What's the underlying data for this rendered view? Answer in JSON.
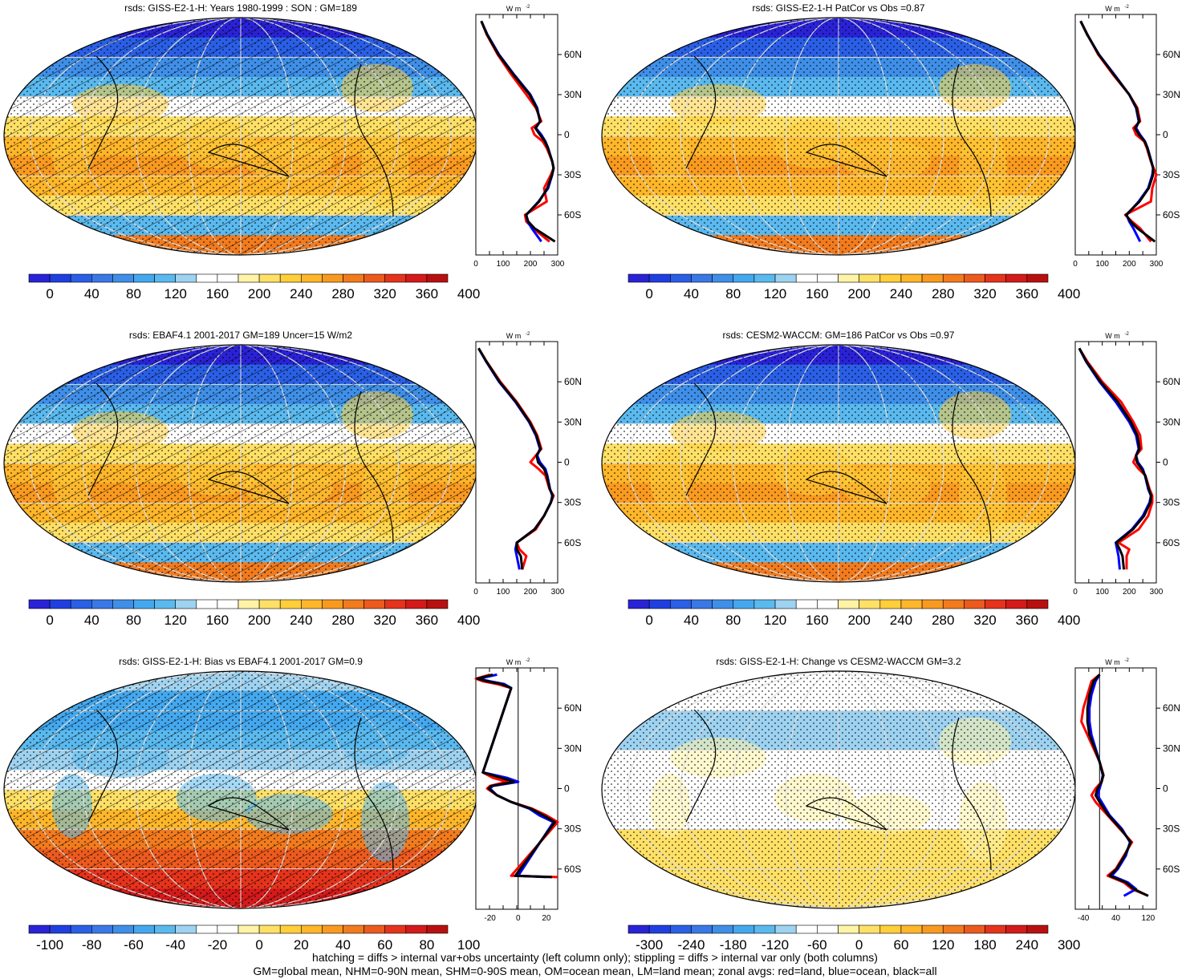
{
  "footer": {
    "line1": "hatching = diffs > internal var+obs uncertainty (left column only); stippling = diffs > internal var only (both columns)",
    "line2": "GM=global mean, NHM=0-90N mean, SHM=0-90S mean, OM=ocean mean, LM=land mean; zonal avgs: red=land, blue=ocean, black=all"
  },
  "colors": {
    "scale": [
      "#2a22d6",
      "#1f3fe0",
      "#2a5fe6",
      "#3a78e6",
      "#3f8fe8",
      "#44a8ee",
      "#5ab9ee",
      "#9dd2f0",
      "#ffffff",
      "#ffffff",
      "#fff3a6",
      "#ffe066",
      "#ffce3a",
      "#ffb62a",
      "#f99a20",
      "#f27b1e",
      "#ec5a1e",
      "#e5331c",
      "#d41a1a",
      "#b81010"
    ],
    "land_line": "#ff0000",
    "ocean_line": "#0000ff",
    "all_line": "#000000"
  },
  "chart_data": [
    {
      "type": "heatmap",
      "title": "rsds: GISS-E2-1-H: Years 1980-1999 : SON : GM=189",
      "kind": "climatology",
      "hatched": true,
      "colorbar_ticks": [
        "0",
        "40",
        "80",
        "120",
        "160",
        "200",
        "240",
        "280",
        "320",
        "360",
        "400"
      ],
      "zonal_profile": {
        "unit_label": "W m",
        "unit_exponent": "-2",
        "x_ticks": [
          "0",
          "100",
          "200",
          "300"
        ],
        "xlim": [
          0,
          300
        ],
        "lat_ticks": [
          "60N",
          "30N",
          "0",
          "30S",
          "60S"
        ],
        "lat": [
          85,
          75,
          60,
          45,
          30,
          20,
          10,
          5,
          0,
          -5,
          -10,
          -20,
          -25,
          -30,
          -40,
          -50,
          -60,
          -65,
          -70,
          -80
        ],
        "series": [
          {
            "name": "land",
            "values": [
              20,
              40,
              80,
              130,
              185,
              220,
              240,
              205,
              215,
              245,
              260,
              280,
              285,
              275,
              250,
              260,
              180,
              185,
              210,
              270
            ]
          },
          {
            "name": "ocean",
            "values": [
              20,
              42,
              85,
              140,
              200,
              225,
              235,
              220,
              240,
              255,
              265,
              280,
              285,
              280,
              265,
              230,
              185,
              190,
              205,
              240
            ]
          },
          {
            "name": "all",
            "values": [
              20,
              41,
              83,
              138,
              197,
              223,
              236,
              218,
              235,
              253,
              264,
              280,
              285,
              279,
              262,
              232,
              184,
              192,
              215,
              290
            ]
          }
        ]
      }
    },
    {
      "type": "heatmap",
      "title": "rsds: GISS-E2-1-H PatCor vs Obs =0.87",
      "kind": "climatology",
      "hatched": false,
      "colorbar_ticks": [
        "0",
        "40",
        "80",
        "120",
        "160",
        "200",
        "240",
        "280",
        "320",
        "360",
        "400"
      ],
      "zonal_profile": {
        "unit_label": "W m",
        "unit_exponent": "-2",
        "x_ticks": [
          "0",
          "100",
          "200",
          "300"
        ],
        "xlim": [
          0,
          300
        ],
        "lat_ticks": [
          "60N",
          "30N",
          "0",
          "30S",
          "60S"
        ],
        "lat": [
          85,
          75,
          60,
          45,
          30,
          20,
          10,
          5,
          0,
          -5,
          -10,
          -20,
          -25,
          -30,
          -40,
          -50,
          -60,
          -65,
          -70,
          -80
        ],
        "series": [
          {
            "name": "land",
            "values": [
              20,
              45,
              85,
              140,
              200,
              230,
              240,
              215,
              225,
              255,
              265,
              280,
              290,
              300,
              285,
              280,
              185,
              210,
              240,
              280
            ]
          },
          {
            "name": "ocean",
            "values": [
              20,
              44,
              88,
              145,
              200,
              225,
              235,
              225,
              240,
              258,
              268,
              282,
              288,
              285,
              270,
              235,
              190,
              200,
              215,
              240
            ]
          },
          {
            "name": "all",
            "values": [
              20,
              44,
              87,
              143,
              200,
              227,
              237,
              222,
              236,
              257,
              267,
              281,
              288,
              288,
              272,
              238,
              188,
              205,
              230,
              295
            ]
          }
        ]
      }
    },
    {
      "type": "heatmap",
      "title": "rsds: EBAF4.1 2001-2017 GM=189 Uncer=15 W/m2",
      "kind": "climatology",
      "hatched": true,
      "colorbar_ticks": [
        "0",
        "40",
        "80",
        "120",
        "160",
        "200",
        "240",
        "280",
        "320",
        "360",
        "400"
      ],
      "zonal_profile": {
        "unit_label": "W m",
        "unit_exponent": "-2",
        "x_ticks": [
          "0",
          "100",
          "200",
          "300"
        ],
        "xlim": [
          0,
          300
        ],
        "lat_ticks": [
          "60N",
          "30N",
          "0",
          "30S",
          "60S"
        ],
        "lat": [
          85,
          75,
          60,
          45,
          30,
          20,
          10,
          5,
          0,
          -5,
          -10,
          -20,
          -25,
          -30,
          -40,
          -50,
          -60,
          -65,
          -70,
          -80
        ],
        "series": [
          {
            "name": "land",
            "values": [
              10,
              40,
              90,
              150,
              200,
              225,
              240,
              220,
              200,
              230,
              255,
              270,
              285,
              275,
              250,
              220,
              150,
              160,
              185,
              170
            ]
          },
          {
            "name": "ocean",
            "values": [
              10,
              38,
              85,
              145,
              195,
              220,
              235,
              225,
              235,
              255,
              262,
              272,
              280,
              275,
              250,
              215,
              150,
              145,
              150,
              160
            ]
          },
          {
            "name": "all",
            "values": [
              10,
              39,
              87,
              147,
              197,
              222,
              237,
              223,
              228,
              250,
              260,
              271,
              282,
              275,
              250,
              216,
              150,
              150,
              165,
              170
            ]
          }
        ]
      }
    },
    {
      "type": "heatmap",
      "title": "rsds: CESM2-WACCM: GM=186 PatCor vs Obs =0.97",
      "kind": "climatology",
      "hatched": false,
      "colorbar_ticks": [
        "0",
        "40",
        "80",
        "120",
        "160",
        "200",
        "240",
        "280",
        "320",
        "360",
        "400"
      ],
      "zonal_profile": {
        "unit_label": "W m",
        "unit_exponent": "-2",
        "x_ticks": [
          "0",
          "100",
          "200",
          "300"
        ],
        "xlim": [
          0,
          300
        ],
        "lat_ticks": [
          "60N",
          "30N",
          "0",
          "30S",
          "60S"
        ],
        "lat": [
          85,
          75,
          60,
          45,
          30,
          20,
          10,
          5,
          0,
          -5,
          -10,
          -20,
          -25,
          -30,
          -40,
          -50,
          -60,
          -65,
          -70,
          -80
        ],
        "series": [
          {
            "name": "land",
            "values": [
              15,
              45,
              100,
              170,
              215,
              240,
              245,
              225,
              215,
              235,
              260,
              275,
              285,
              285,
              270,
              235,
              160,
              200,
              190,
              190
            ]
          },
          {
            "name": "ocean",
            "values": [
              15,
              40,
              90,
              150,
              200,
              225,
              235,
              225,
              232,
              250,
              258,
              270,
              280,
              275,
              250,
              210,
              150,
              155,
              160,
              165
            ]
          },
          {
            "name": "all",
            "values": [
              15,
              42,
              94,
              158,
              206,
              230,
              238,
              225,
              228,
              246,
              259,
              272,
              281,
              278,
              255,
              214,
              152,
              165,
              175,
              180
            ]
          }
        ]
      }
    },
    {
      "type": "heatmap",
      "title": "rsds: GISS-E2-1-H: Bias vs EBAF4.1 2001-2017  GM=0.9",
      "kind": "bias",
      "hatched": true,
      "colorbar_ticks": [
        "-100",
        "-80",
        "-60",
        "-40",
        "-20",
        "0",
        "20",
        "40",
        "60",
        "80",
        "100"
      ],
      "zonal_profile": {
        "unit_label": "W m",
        "unit_exponent": "-2",
        "x_ticks": [
          "-20",
          "0",
          "20"
        ],
        "xlim": [
          -30,
          28
        ],
        "lat_ticks": [
          "60N",
          "30N",
          "0",
          "30S",
          "60S"
        ],
        "lat": [
          85,
          82,
          80,
          78,
          75,
          12,
          8,
          5,
          2,
          0,
          -5,
          -10,
          -15,
          -20,
          -25,
          -65,
          -66
        ],
        "series": [
          {
            "name": "land",
            "values": [
              -20,
              -30,
              -25,
              -15,
              -5,
              -25,
              -18,
              -8,
              -20,
              -22,
              -15,
              -5,
              10,
              20,
              28,
              -5,
              28
            ]
          },
          {
            "name": "ocean",
            "values": [
              -15,
              -28,
              -20,
              -10,
              -5,
              -25,
              -8,
              0,
              -18,
              -20,
              -15,
              -5,
              8,
              15,
              25,
              0,
              20
            ]
          },
          {
            "name": "all",
            "values": [
              -18,
              -29,
              -22,
              -12,
              -5,
              -25,
              -12,
              -3,
              -19,
              -21,
              -15,
              -5,
              9,
              18,
              26,
              -2,
              24
            ]
          }
        ]
      }
    },
    {
      "type": "heatmap",
      "title": "rsds: GISS-E2-1-H: Change vs CESM2-WACCM GM=3.2",
      "kind": "change",
      "hatched": false,
      "colorbar_ticks": [
        "-300",
        "-240",
        "-180",
        "-120",
        "-60",
        "0",
        "60",
        "120",
        "180",
        "240",
        "300"
      ],
      "zonal_profile": {
        "unit_label": "W m",
        "unit_exponent": "-2",
        "x_ticks": [
          "-40",
          "40",
          "120"
        ],
        "xlim": [
          -60,
          140
        ],
        "lat_ticks": [
          "60N",
          "30N",
          "0",
          "30S",
          "60S"
        ],
        "lat": [
          85,
          80,
          70,
          60,
          50,
          40,
          30,
          20,
          10,
          5,
          0,
          -5,
          -10,
          -20,
          -30,
          -40,
          -50,
          -60,
          -65,
          -70,
          -75,
          -80
        ],
        "series": [
          {
            "name": "land",
            "values": [
              0,
              -20,
              -30,
              -40,
              -45,
              -30,
              -15,
              0,
              10,
              5,
              -10,
              -20,
              -10,
              20,
              50,
              80,
              60,
              40,
              20,
              60,
              80,
              120
            ]
          },
          {
            "name": "ocean",
            "values": [
              0,
              -10,
              -20,
              -25,
              -25,
              -20,
              -10,
              0,
              8,
              5,
              0,
              -5,
              5,
              25,
              55,
              75,
              65,
              45,
              30,
              70,
              90,
              60
            ]
          },
          {
            "name": "all",
            "values": [
              0,
              -15,
              -25,
              -30,
              -30,
              -25,
              -12,
              0,
              9,
              5,
              -5,
              -10,
              0,
              22,
              52,
              77,
              62,
              42,
              25,
              65,
              85,
              120
            ]
          }
        ]
      }
    }
  ]
}
